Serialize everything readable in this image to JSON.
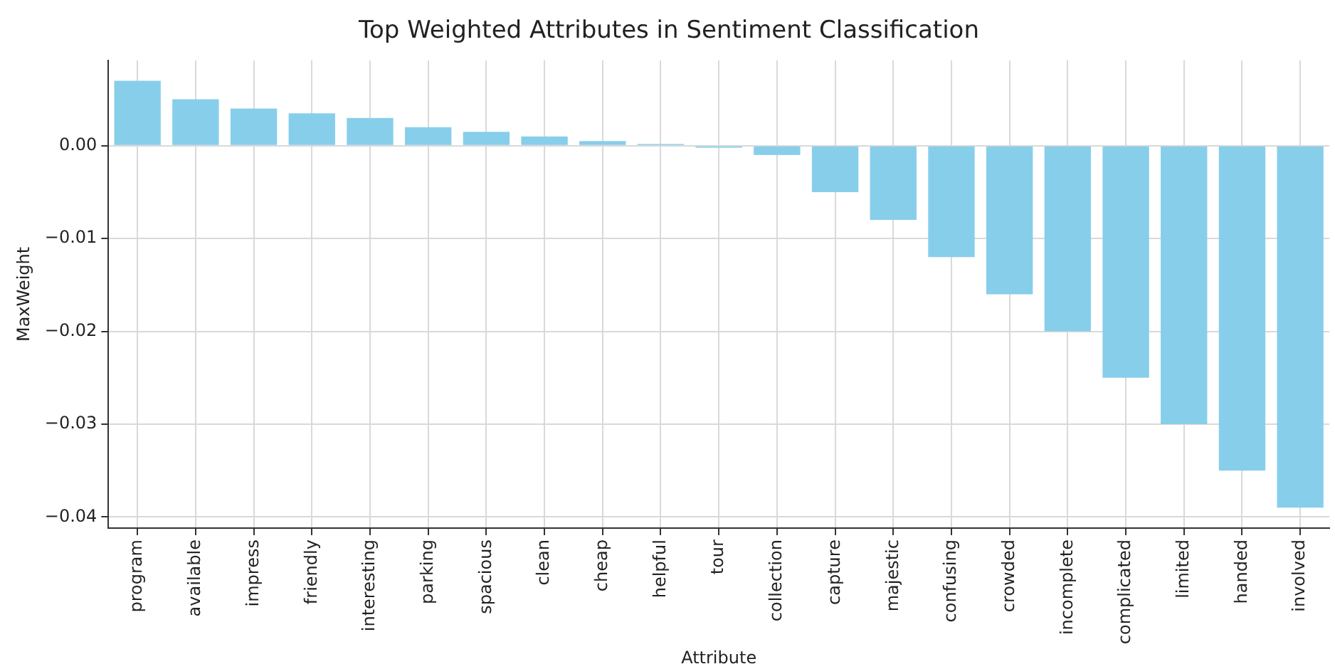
{
  "chart_data": {
    "type": "bar",
    "title": "Top Weighted Attributes in Sentiment Classification",
    "xlabel": "Attribute",
    "ylabel": "MaxWeight",
    "categories": [
      "program",
      "available",
      "impress",
      "friendly",
      "interesting",
      "parking",
      "spacious",
      "clean",
      "cheap",
      "helpful",
      "tour",
      "collection",
      "capture",
      "majestic",
      "confusing",
      "crowded",
      "incomplete",
      "complicated",
      "limited",
      "handed",
      "involved"
    ],
    "values": [
      0.007,
      0.005,
      0.004,
      0.0035,
      0.003,
      0.002,
      0.0015,
      0.001,
      0.0005,
      0.0002,
      -0.0002,
      -0.001,
      -0.005,
      -0.008,
      -0.012,
      -0.016,
      -0.02,
      -0.025,
      -0.03,
      -0.035,
      -0.039
    ],
    "color": "#87ceeb",
    "ylim": [
      -0.0412,
      0.0092
    ],
    "yticks": [
      {
        "value": -0.04,
        "label": "−0.04"
      },
      {
        "value": -0.03,
        "label": "−0.03"
      },
      {
        "value": -0.02,
        "label": "−0.02"
      },
      {
        "value": -0.01,
        "label": "−0.01"
      },
      {
        "value": 0,
        "label": "0.00"
      }
    ],
    "grid": true,
    "legend": false
  }
}
